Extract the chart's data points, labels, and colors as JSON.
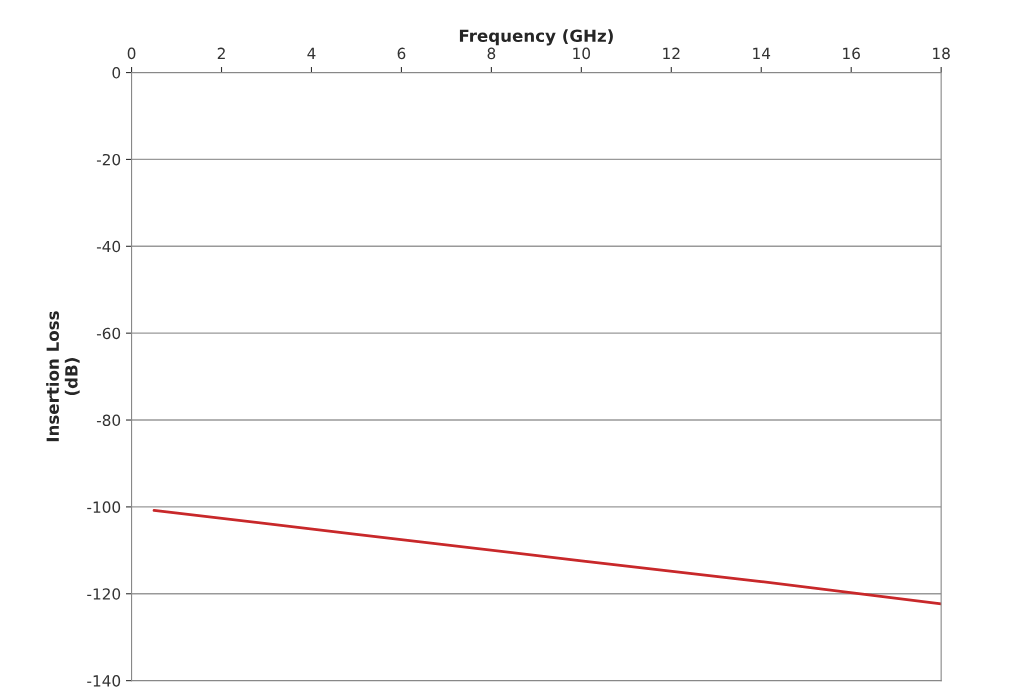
{
  "chart_data": {
    "type": "line",
    "xlabel": "Frequency (GHz)",
    "ylabel": "Insertion Loss\n(dB)",
    "x": [
      0.5,
      5,
      10,
      14,
      18
    ],
    "series": [
      {
        "color": "#c8282a",
        "values": [
          -100.8,
          -106.3,
          -112.4,
          -117.2,
          -122.3
        ]
      }
    ],
    "xlim": [
      0,
      18
    ],
    "xticks": [
      0,
      2,
      4,
      6,
      8,
      10,
      12,
      14,
      16,
      18
    ],
    "ylim": [
      -140,
      0
    ],
    "yticks": [
      -140,
      -120,
      -100,
      -80,
      -60,
      -40,
      -20,
      0
    ],
    "grid": "y",
    "legend": false,
    "marker": "none",
    "line_style": "solid"
  }
}
